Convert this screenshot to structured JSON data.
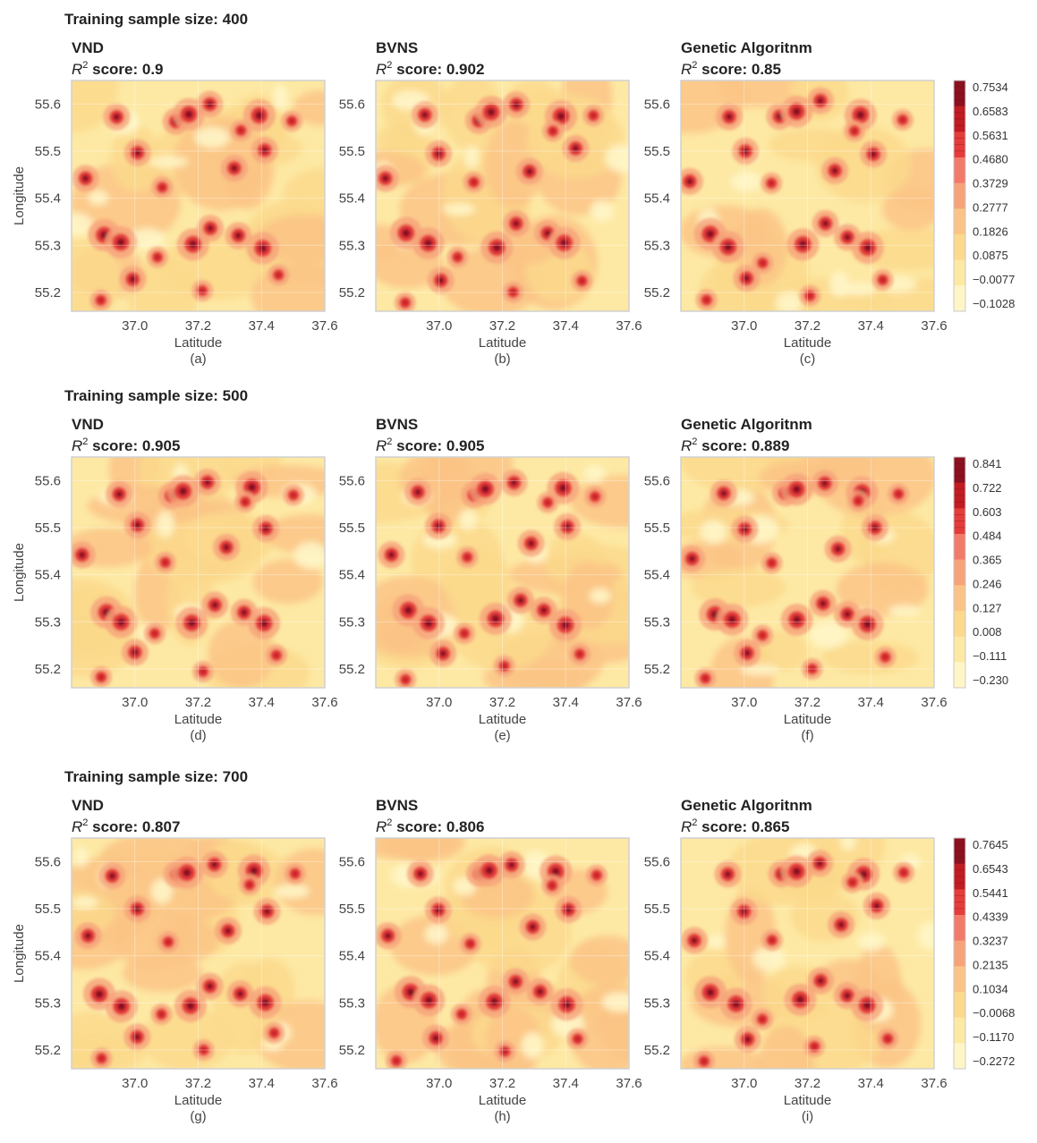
{
  "chart_data": {
    "type": "heatmap",
    "xlabel": "Latitude",
    "ylabel": "Longitude",
    "xlim": [
      36.8,
      37.6
    ],
    "ylim": [
      55.16,
      55.65
    ],
    "xticks": [
      "37.0",
      "37.2",
      "37.4",
      "37.6"
    ],
    "yticks": [
      "55.2",
      "55.3",
      "55.4",
      "55.5",
      "55.6"
    ],
    "rows": [
      {
        "title": "Training sample size: 400",
        "panels": [
          {
            "method": "VND",
            "score_label": "score: 0.9",
            "score": 0.9,
            "caption": "(a)"
          },
          {
            "method": "BVNS",
            "score_label": "score: 0.902",
            "score": 0.902,
            "caption": "(b)"
          },
          {
            "method": "Genetic Algoritnm",
            "score_label": "score: 0.85",
            "score": 0.85,
            "caption": "(c)"
          }
        ],
        "colorbar_ticks": [
          "0.7534",
          "0.6583",
          "0.5631",
          "0.4680",
          "0.3729",
          "0.2777",
          "0.1826",
          "0.0875",
          "−0.0077",
          "−0.1028"
        ]
      },
      {
        "title": "Training sample size: 500",
        "panels": [
          {
            "method": "VND",
            "score_label": "score: 0.905",
            "score": 0.905,
            "caption": "(d)"
          },
          {
            "method": "BVNS",
            "score_label": "score: 0.905",
            "score": 0.905,
            "caption": "(e)"
          },
          {
            "method": "Genetic Algoritnm",
            "score_label": "score: 0.889",
            "score": 0.889,
            "caption": "(f)"
          }
        ],
        "colorbar_ticks": [
          "0.841",
          "0.722",
          "0.603",
          "0.484",
          "0.365",
          "0.246",
          "0.127",
          "0.008",
          "−0.111",
          "−0.230"
        ]
      },
      {
        "title": "Training sample size: 700",
        "panels": [
          {
            "method": "VND",
            "score_label": "score: 0.807",
            "score": 0.807,
            "caption": "(g)"
          },
          {
            "method": "BVNS",
            "score_label": "score: 0.806",
            "score": 0.806,
            "caption": "(h)"
          },
          {
            "method": "Genetic Algoritnm",
            "score_label": "score: 0.865",
            "score": 0.865,
            "caption": "(i)"
          }
        ],
        "colorbar_ticks": [
          "0.7645",
          "0.6543",
          "0.5441",
          "0.4339",
          "0.3237",
          "0.2135",
          "0.1034",
          "−0.0068",
          "−0.1170",
          "−0.2272"
        ]
      }
    ],
    "hotspots": [
      {
        "lat": 36.9,
        "lon": 55.32,
        "level": 3
      },
      {
        "lat": 36.94,
        "lon": 55.57,
        "level": 2
      },
      {
        "lat": 36.96,
        "lon": 55.3,
        "level": 3
      },
      {
        "lat": 37.0,
        "lon": 55.5,
        "level": 2
      },
      {
        "lat": 37.0,
        "lon": 55.23,
        "level": 2
      },
      {
        "lat": 37.12,
        "lon": 55.57,
        "level": 2
      },
      {
        "lat": 37.16,
        "lon": 55.58,
        "level": 3
      },
      {
        "lat": 37.18,
        "lon": 55.3,
        "level": 3
      },
      {
        "lat": 37.24,
        "lon": 55.6,
        "level": 2
      },
      {
        "lat": 37.25,
        "lon": 55.34,
        "level": 2
      },
      {
        "lat": 37.3,
        "lon": 55.46,
        "level": 2
      },
      {
        "lat": 37.33,
        "lon": 55.32,
        "level": 2
      },
      {
        "lat": 37.38,
        "lon": 55.58,
        "level": 3
      },
      {
        "lat": 37.4,
        "lon": 55.3,
        "level": 3
      },
      {
        "lat": 37.42,
        "lon": 55.5,
        "level": 2
      },
      {
        "lat": 36.84,
        "lon": 55.44,
        "level": 2
      },
      {
        "lat": 37.44,
        "lon": 55.23,
        "level": 1
      },
      {
        "lat": 37.1,
        "lon": 55.43,
        "level": 1
      },
      {
        "lat": 37.07,
        "lon": 55.27,
        "level": 1
      },
      {
        "lat": 37.22,
        "lon": 55.2,
        "level": 1
      },
      {
        "lat": 37.5,
        "lon": 55.57,
        "level": 1
      },
      {
        "lat": 37.35,
        "lon": 55.55,
        "level": 1
      },
      {
        "lat": 36.88,
        "lon": 55.18,
        "level": 1
      }
    ]
  }
}
